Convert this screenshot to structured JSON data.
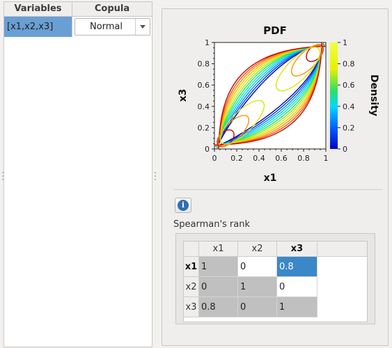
{
  "variables_table": {
    "headers": {
      "variables": "Variables",
      "copula": "Copula"
    },
    "rows": [
      {
        "variables": "[x1,x2,x3]",
        "copula": "Normal"
      }
    ]
  },
  "plot": {
    "title": "PDF",
    "xlabel": "x1",
    "ylabel": "x3",
    "colorbar_label": "Density",
    "x_ticks": [
      "0",
      "0.2",
      "0.4",
      "0.6",
      "0.8",
      "1"
    ],
    "y_ticks": [
      "0",
      "0.2",
      "0.4",
      "0.6",
      "0.8",
      "1"
    ],
    "colorbar_ticks": [
      "0",
      "0.2",
      "0.4",
      "0.6",
      "0.8",
      "1"
    ]
  },
  "chart_data": {
    "type": "contour",
    "title": "PDF",
    "xlabel": "x1",
    "ylabel": "x3",
    "xlim": [
      0,
      1
    ],
    "ylim": [
      0,
      1
    ],
    "colorbar": {
      "label": "Density",
      "range": [
        0,
        1
      ],
      "colors": [
        "#0000c8",
        "#00c8ff",
        "#30e060",
        "#f0f000",
        "#ff8800",
        "#c80000"
      ]
    },
    "copula_correlation": 0.8
  },
  "spearman": {
    "label": "Spearman's rank",
    "columns": [
      "x1",
      "x2",
      "x3"
    ],
    "rows": [
      {
        "label": "x1",
        "values": [
          "1",
          "0",
          "0.8"
        ]
      },
      {
        "label": "x2",
        "values": [
          "0",
          "1",
          "0"
        ]
      },
      {
        "label": "x3",
        "values": [
          "0.8",
          "0",
          "1"
        ]
      }
    ]
  },
  "colors": {
    "selection": "#3b88c9",
    "variable_highlight": "#6a9fd4",
    "info_icon": "#2f6fb3"
  }
}
